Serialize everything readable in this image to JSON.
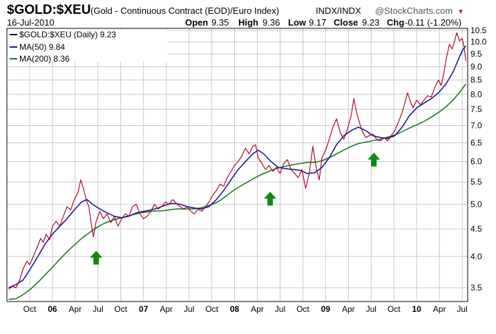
{
  "header": {
    "symbol": "$GOLD:$XEU",
    "description": "(Gold - Continuous Contract (EOD)/Euro Index)",
    "exchange": "INDX/INDX",
    "logo": "@StockCharts.com",
    "date": "16-Jul-2010",
    "open_label": "Open",
    "open_value": "9.35",
    "high_label": "High",
    "high_value": "9.36",
    "low_label": "Low",
    "low_value": "9.17",
    "close_label": "Close",
    "close_value": "9.23",
    "chg_label": "Chg",
    "chg_value": "-0.11 (-1.20%)"
  },
  "colors": {
    "price": "#aa0a2a",
    "ma50": "#1a1a99",
    "ma200": "#1d7a1d",
    "arrow": "#118811",
    "grid": "#c8c8c8"
  },
  "chart_data": {
    "type": "line",
    "scale": "log",
    "ylim": [
      3.3,
      10.6
    ],
    "y_ticks": [
      3.5,
      4.0,
      4.5,
      5.0,
      5.5,
      6.0,
      6.5,
      7.0,
      7.5,
      8.0,
      8.5,
      9.0,
      9.5,
      10.0,
      10.5
    ],
    "x_ticks": [
      {
        "label": "Oct",
        "x": 2005.75,
        "bold": false
      },
      {
        "label": "06",
        "x": 2006.0,
        "bold": true
      },
      {
        "label": "Apr",
        "x": 2006.25,
        "bold": false
      },
      {
        "label": "Jul",
        "x": 2006.5,
        "bold": false
      },
      {
        "label": "Oct",
        "x": 2006.75,
        "bold": false
      },
      {
        "label": "07",
        "x": 2007.0,
        "bold": true
      },
      {
        "label": "Apr",
        "x": 2007.25,
        "bold": false
      },
      {
        "label": "Jul",
        "x": 2007.5,
        "bold": false
      },
      {
        "label": "Oct",
        "x": 2007.75,
        "bold": false
      },
      {
        "label": "08",
        "x": 2008.0,
        "bold": true
      },
      {
        "label": "Apr",
        "x": 2008.25,
        "bold": false
      },
      {
        "label": "Jul",
        "x": 2008.5,
        "bold": false
      },
      {
        "label": "Oct",
        "x": 2008.75,
        "bold": false
      },
      {
        "label": "09",
        "x": 2009.0,
        "bold": true
      },
      {
        "label": "Apr",
        "x": 2009.25,
        "bold": false
      },
      {
        "label": "Jul",
        "x": 2009.5,
        "bold": false
      },
      {
        "label": "Oct",
        "x": 2009.75,
        "bold": false
      },
      {
        "label": "10",
        "x": 2010.0,
        "bold": true
      },
      {
        "label": "Apr",
        "x": 2010.25,
        "bold": false
      },
      {
        "label": "Jul",
        "x": 2010.5,
        "bold": false
      }
    ],
    "xlim": [
      2005.5,
      2010.56
    ],
    "series": [
      {
        "name": "$GOLD:$XEU (Daily) 9.23",
        "key": "price",
        "points": [
          [
            2005.52,
            3.48
          ],
          [
            2005.56,
            3.52
          ],
          [
            2005.6,
            3.5
          ],
          [
            2005.64,
            3.62
          ],
          [
            2005.68,
            3.8
          ],
          [
            2005.72,
            3.92
          ],
          [
            2005.75,
            3.86
          ],
          [
            2005.79,
            4.0
          ],
          [
            2005.83,
            4.15
          ],
          [
            2005.87,
            4.32
          ],
          [
            2005.9,
            4.25
          ],
          [
            2005.93,
            4.4
          ],
          [
            2005.97,
            4.3
          ],
          [
            2006.0,
            4.55
          ],
          [
            2006.04,
            4.65
          ],
          [
            2006.08,
            4.55
          ],
          [
            2006.12,
            4.75
          ],
          [
            2006.16,
            4.95
          ],
          [
            2006.2,
            4.88
          ],
          [
            2006.24,
            5.1
          ],
          [
            2006.28,
            5.25
          ],
          [
            2006.31,
            5.55
          ],
          [
            2006.34,
            5.35
          ],
          [
            2006.37,
            5.1
          ],
          [
            2006.4,
            4.95
          ],
          [
            2006.43,
            4.55
          ],
          [
            2006.45,
            4.35
          ],
          [
            2006.48,
            4.65
          ],
          [
            2006.52,
            4.85
          ],
          [
            2006.56,
            4.7
          ],
          [
            2006.6,
            4.8
          ],
          [
            2006.64,
            4.62
          ],
          [
            2006.68,
            4.75
          ],
          [
            2006.72,
            4.55
          ],
          [
            2006.76,
            4.7
          ],
          [
            2006.8,
            4.8
          ],
          [
            2006.84,
            4.75
          ],
          [
            2006.88,
            4.95
          ],
          [
            2006.92,
            5.0
          ],
          [
            2006.96,
            4.8
          ],
          [
            2007.0,
            4.7
          ],
          [
            2007.04,
            4.75
          ],
          [
            2007.08,
            4.85
          ],
          [
            2007.12,
            5.0
          ],
          [
            2007.16,
            4.9
          ],
          [
            2007.2,
            4.95
          ],
          [
            2007.24,
            5.05
          ],
          [
            2007.28,
            5.0
          ],
          [
            2007.32,
            5.1
          ],
          [
            2007.36,
            5.02
          ],
          [
            2007.4,
            4.95
          ],
          [
            2007.44,
            4.9
          ],
          [
            2007.48,
            4.95
          ],
          [
            2007.52,
            4.85
          ],
          [
            2007.56,
            4.8
          ],
          [
            2007.6,
            4.9
          ],
          [
            2007.64,
            4.85
          ],
          [
            2007.68,
            4.95
          ],
          [
            2007.72,
            5.05
          ],
          [
            2007.76,
            5.2
          ],
          [
            2007.8,
            5.3
          ],
          [
            2007.84,
            5.45
          ],
          [
            2007.88,
            5.4
          ],
          [
            2007.92,
            5.6
          ],
          [
            2007.96,
            5.75
          ],
          [
            2008.0,
            5.9
          ],
          [
            2008.04,
            6.0
          ],
          [
            2008.08,
            6.15
          ],
          [
            2008.12,
            6.35
          ],
          [
            2008.16,
            6.2
          ],
          [
            2008.2,
            6.4
          ],
          [
            2008.23,
            6.45
          ],
          [
            2008.26,
            6.1
          ],
          [
            2008.3,
            5.95
          ],
          [
            2008.34,
            5.8
          ],
          [
            2008.38,
            5.9
          ],
          [
            2008.42,
            5.75
          ],
          [
            2008.46,
            5.85
          ],
          [
            2008.5,
            5.7
          ],
          [
            2008.54,
            5.95
          ],
          [
            2008.58,
            6.05
          ],
          [
            2008.62,
            5.8
          ],
          [
            2008.66,
            5.7
          ],
          [
            2008.7,
            5.6
          ],
          [
            2008.74,
            5.8
          ],
          [
            2008.78,
            5.35
          ],
          [
            2008.82,
            5.7
          ],
          [
            2008.86,
            6.4
          ],
          [
            2008.9,
            5.8
          ],
          [
            2008.93,
            5.55
          ],
          [
            2008.96,
            6.1
          ],
          [
            2009.0,
            6.3
          ],
          [
            2009.04,
            6.6
          ],
          [
            2009.08,
            6.95
          ],
          [
            2009.12,
            7.2
          ],
          [
            2009.16,
            6.8
          ],
          [
            2009.2,
            6.6
          ],
          [
            2009.24,
            6.9
          ],
          [
            2009.28,
            7.3
          ],
          [
            2009.31,
            7.85
          ],
          [
            2009.34,
            7.4
          ],
          [
            2009.37,
            7.1
          ],
          [
            2009.4,
            6.85
          ],
          [
            2009.44,
            6.65
          ],
          [
            2009.48,
            6.7
          ],
          [
            2009.52,
            6.75
          ],
          [
            2009.56,
            6.6
          ],
          [
            2009.6,
            6.55
          ],
          [
            2009.64,
            6.65
          ],
          [
            2009.68,
            6.55
          ],
          [
            2009.72,
            6.7
          ],
          [
            2009.76,
            6.85
          ],
          [
            2009.8,
            7.1
          ],
          [
            2009.84,
            7.4
          ],
          [
            2009.87,
            7.7
          ],
          [
            2009.9,
            8.05
          ],
          [
            2009.93,
            7.75
          ],
          [
            2009.96,
            7.55
          ],
          [
            2010.0,
            7.8
          ],
          [
            2010.04,
            7.65
          ],
          [
            2010.08,
            7.8
          ],
          [
            2010.12,
            7.95
          ],
          [
            2010.16,
            7.9
          ],
          [
            2010.2,
            8.25
          ],
          [
            2010.24,
            8.5
          ],
          [
            2010.27,
            8.3
          ],
          [
            2010.3,
            8.8
          ],
          [
            2010.33,
            9.4
          ],
          [
            2010.36,
            9.9
          ],
          [
            2010.39,
            9.7
          ],
          [
            2010.42,
            10.1
          ],
          [
            2010.44,
            10.4
          ],
          [
            2010.47,
            10.05
          ],
          [
            2010.5,
            10.15
          ],
          [
            2010.52,
            9.8
          ],
          [
            2010.54,
            9.23
          ]
        ]
      },
      {
        "name": "MA(50) 9.84",
        "key": "ma50",
        "points": [
          [
            2005.52,
            3.5
          ],
          [
            2005.6,
            3.55
          ],
          [
            2005.68,
            3.62
          ],
          [
            2005.76,
            3.8
          ],
          [
            2005.84,
            4.0
          ],
          [
            2005.92,
            4.22
          ],
          [
            2006.0,
            4.4
          ],
          [
            2006.08,
            4.55
          ],
          [
            2006.16,
            4.7
          ],
          [
            2006.24,
            4.88
          ],
          [
            2006.32,
            5.05
          ],
          [
            2006.38,
            5.1
          ],
          [
            2006.44,
            5.0
          ],
          [
            2006.52,
            4.9
          ],
          [
            2006.6,
            4.82
          ],
          [
            2006.68,
            4.75
          ],
          [
            2006.76,
            4.72
          ],
          [
            2006.84,
            4.75
          ],
          [
            2006.92,
            4.82
          ],
          [
            2007.0,
            4.85
          ],
          [
            2007.08,
            4.88
          ],
          [
            2007.16,
            4.92
          ],
          [
            2007.24,
            4.98
          ],
          [
            2007.32,
            5.02
          ],
          [
            2007.4,
            5.0
          ],
          [
            2007.48,
            4.95
          ],
          [
            2007.56,
            4.92
          ],
          [
            2007.64,
            4.9
          ],
          [
            2007.72,
            4.95
          ],
          [
            2007.8,
            5.1
          ],
          [
            2007.88,
            5.3
          ],
          [
            2007.96,
            5.55
          ],
          [
            2008.04,
            5.8
          ],
          [
            2008.12,
            6.0
          ],
          [
            2008.2,
            6.2
          ],
          [
            2008.26,
            6.3
          ],
          [
            2008.32,
            6.2
          ],
          [
            2008.4,
            6.0
          ],
          [
            2008.48,
            5.85
          ],
          [
            2008.56,
            5.82
          ],
          [
            2008.64,
            5.8
          ],
          [
            2008.72,
            5.78
          ],
          [
            2008.8,
            5.7
          ],
          [
            2008.88,
            5.72
          ],
          [
            2008.96,
            5.85
          ],
          [
            2009.04,
            6.1
          ],
          [
            2009.12,
            6.45
          ],
          [
            2009.2,
            6.7
          ],
          [
            2009.28,
            6.85
          ],
          [
            2009.36,
            6.95
          ],
          [
            2009.44,
            6.85
          ],
          [
            2009.52,
            6.7
          ],
          [
            2009.6,
            6.65
          ],
          [
            2009.68,
            6.62
          ],
          [
            2009.76,
            6.7
          ],
          [
            2009.84,
            6.95
          ],
          [
            2009.92,
            7.3
          ],
          [
            2010.0,
            7.55
          ],
          [
            2010.08,
            7.7
          ],
          [
            2010.16,
            7.85
          ],
          [
            2010.24,
            8.05
          ],
          [
            2010.32,
            8.35
          ],
          [
            2010.4,
            8.8
          ],
          [
            2010.46,
            9.3
          ],
          [
            2010.51,
            9.7
          ],
          [
            2010.54,
            9.84
          ]
        ]
      },
      {
        "name": "MA(200) 8.36",
        "key": "ma200",
        "points": [
          [
            2005.52,
            3.33
          ],
          [
            2005.6,
            3.34
          ],
          [
            2005.68,
            3.4
          ],
          [
            2005.76,
            3.48
          ],
          [
            2005.84,
            3.58
          ],
          [
            2005.92,
            3.7
          ],
          [
            2006.0,
            3.82
          ],
          [
            2006.08,
            3.95
          ],
          [
            2006.16,
            4.08
          ],
          [
            2006.24,
            4.2
          ],
          [
            2006.32,
            4.32
          ],
          [
            2006.4,
            4.42
          ],
          [
            2006.48,
            4.52
          ],
          [
            2006.56,
            4.6
          ],
          [
            2006.64,
            4.66
          ],
          [
            2006.72,
            4.7
          ],
          [
            2006.8,
            4.74
          ],
          [
            2006.88,
            4.78
          ],
          [
            2006.96,
            4.82
          ],
          [
            2007.04,
            4.84
          ],
          [
            2007.12,
            4.86
          ],
          [
            2007.2,
            4.86
          ],
          [
            2007.28,
            4.88
          ],
          [
            2007.36,
            4.9
          ],
          [
            2007.44,
            4.9
          ],
          [
            2007.52,
            4.9
          ],
          [
            2007.6,
            4.91
          ],
          [
            2007.68,
            4.95
          ],
          [
            2007.76,
            5.0
          ],
          [
            2007.84,
            5.08
          ],
          [
            2007.92,
            5.2
          ],
          [
            2008.0,
            5.32
          ],
          [
            2008.08,
            5.42
          ],
          [
            2008.16,
            5.52
          ],
          [
            2008.24,
            5.62
          ],
          [
            2008.32,
            5.7
          ],
          [
            2008.4,
            5.78
          ],
          [
            2008.48,
            5.84
          ],
          [
            2008.56,
            5.88
          ],
          [
            2008.64,
            5.92
          ],
          [
            2008.72,
            5.95
          ],
          [
            2008.8,
            5.98
          ],
          [
            2008.88,
            5.98
          ],
          [
            2008.96,
            6.02
          ],
          [
            2009.04,
            6.1
          ],
          [
            2009.12,
            6.2
          ],
          [
            2009.2,
            6.3
          ],
          [
            2009.28,
            6.4
          ],
          [
            2009.36,
            6.48
          ],
          [
            2009.44,
            6.52
          ],
          [
            2009.52,
            6.56
          ],
          [
            2009.6,
            6.6
          ],
          [
            2009.68,
            6.66
          ],
          [
            2009.76,
            6.72
          ],
          [
            2009.84,
            6.82
          ],
          [
            2009.92,
            6.92
          ],
          [
            2010.0,
            7.02
          ],
          [
            2010.08,
            7.12
          ],
          [
            2010.16,
            7.25
          ],
          [
            2010.24,
            7.4
          ],
          [
            2010.32,
            7.58
          ],
          [
            2010.4,
            7.8
          ],
          [
            2010.48,
            8.1
          ],
          [
            2010.54,
            8.36
          ]
        ]
      }
    ],
    "annotations": [
      {
        "type": "up-arrow",
        "x": 2006.48,
        "y": 3.98
      },
      {
        "type": "up-arrow",
        "x": 2008.39,
        "y": 5.12
      },
      {
        "type": "up-arrow",
        "x": 2009.53,
        "y": 6.05
      }
    ]
  }
}
